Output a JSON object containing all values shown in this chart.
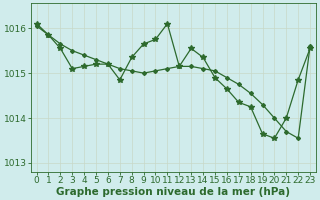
{
  "line_straight_x": [
    0,
    1,
    2,
    3,
    4,
    5,
    6,
    7,
    8,
    9,
    10,
    11,
    12,
    13,
    14,
    15,
    16,
    17,
    18,
    19,
    20,
    21,
    22,
    23
  ],
  "line_straight_y": [
    1016.05,
    1015.85,
    1015.65,
    1015.5,
    1015.4,
    1015.3,
    1015.2,
    1015.1,
    1015.05,
    1015.0,
    1015.05,
    1015.1,
    1015.15,
    1015.15,
    1015.1,
    1015.05,
    1014.9,
    1014.75,
    1014.55,
    1014.3,
    1014.0,
    1013.7,
    1013.55,
    1015.6
  ],
  "line_jagged_x": [
    0,
    1,
    2,
    3,
    4,
    5,
    6,
    7,
    8,
    9,
    10,
    11,
    12,
    13,
    14,
    15,
    16,
    17,
    18,
    19,
    20,
    21,
    22,
    23
  ],
  "line_jagged_y": [
    1016.1,
    1015.85,
    1015.55,
    1015.1,
    1015.15,
    1015.2,
    1015.2,
    1014.85,
    1015.35,
    1015.65,
    1015.75,
    1016.1,
    1015.15,
    1015.55,
    1015.35,
    1014.9,
    1014.65,
    1014.35,
    1014.25,
    1013.65,
    1013.55,
    1014.0,
    1014.85,
    1015.55
  ],
  "line_color": "#2d6a2d",
  "bg_color": "#d0ecec",
  "grid_color": "#b8d8d8",
  "xlabel": "Graphe pression niveau de la mer (hPa)",
  "ylim": [
    1012.8,
    1016.55
  ],
  "xlim": [
    -0.5,
    23.5
  ],
  "yticks": [
    1013,
    1014,
    1015,
    1016
  ],
  "xticks": [
    0,
    1,
    2,
    3,
    4,
    5,
    6,
    7,
    8,
    9,
    10,
    11,
    12,
    13,
    14,
    15,
    16,
    17,
    18,
    19,
    20,
    21,
    22,
    23
  ],
  "xlabel_fontsize": 7.5,
  "tick_fontsize": 6.5
}
